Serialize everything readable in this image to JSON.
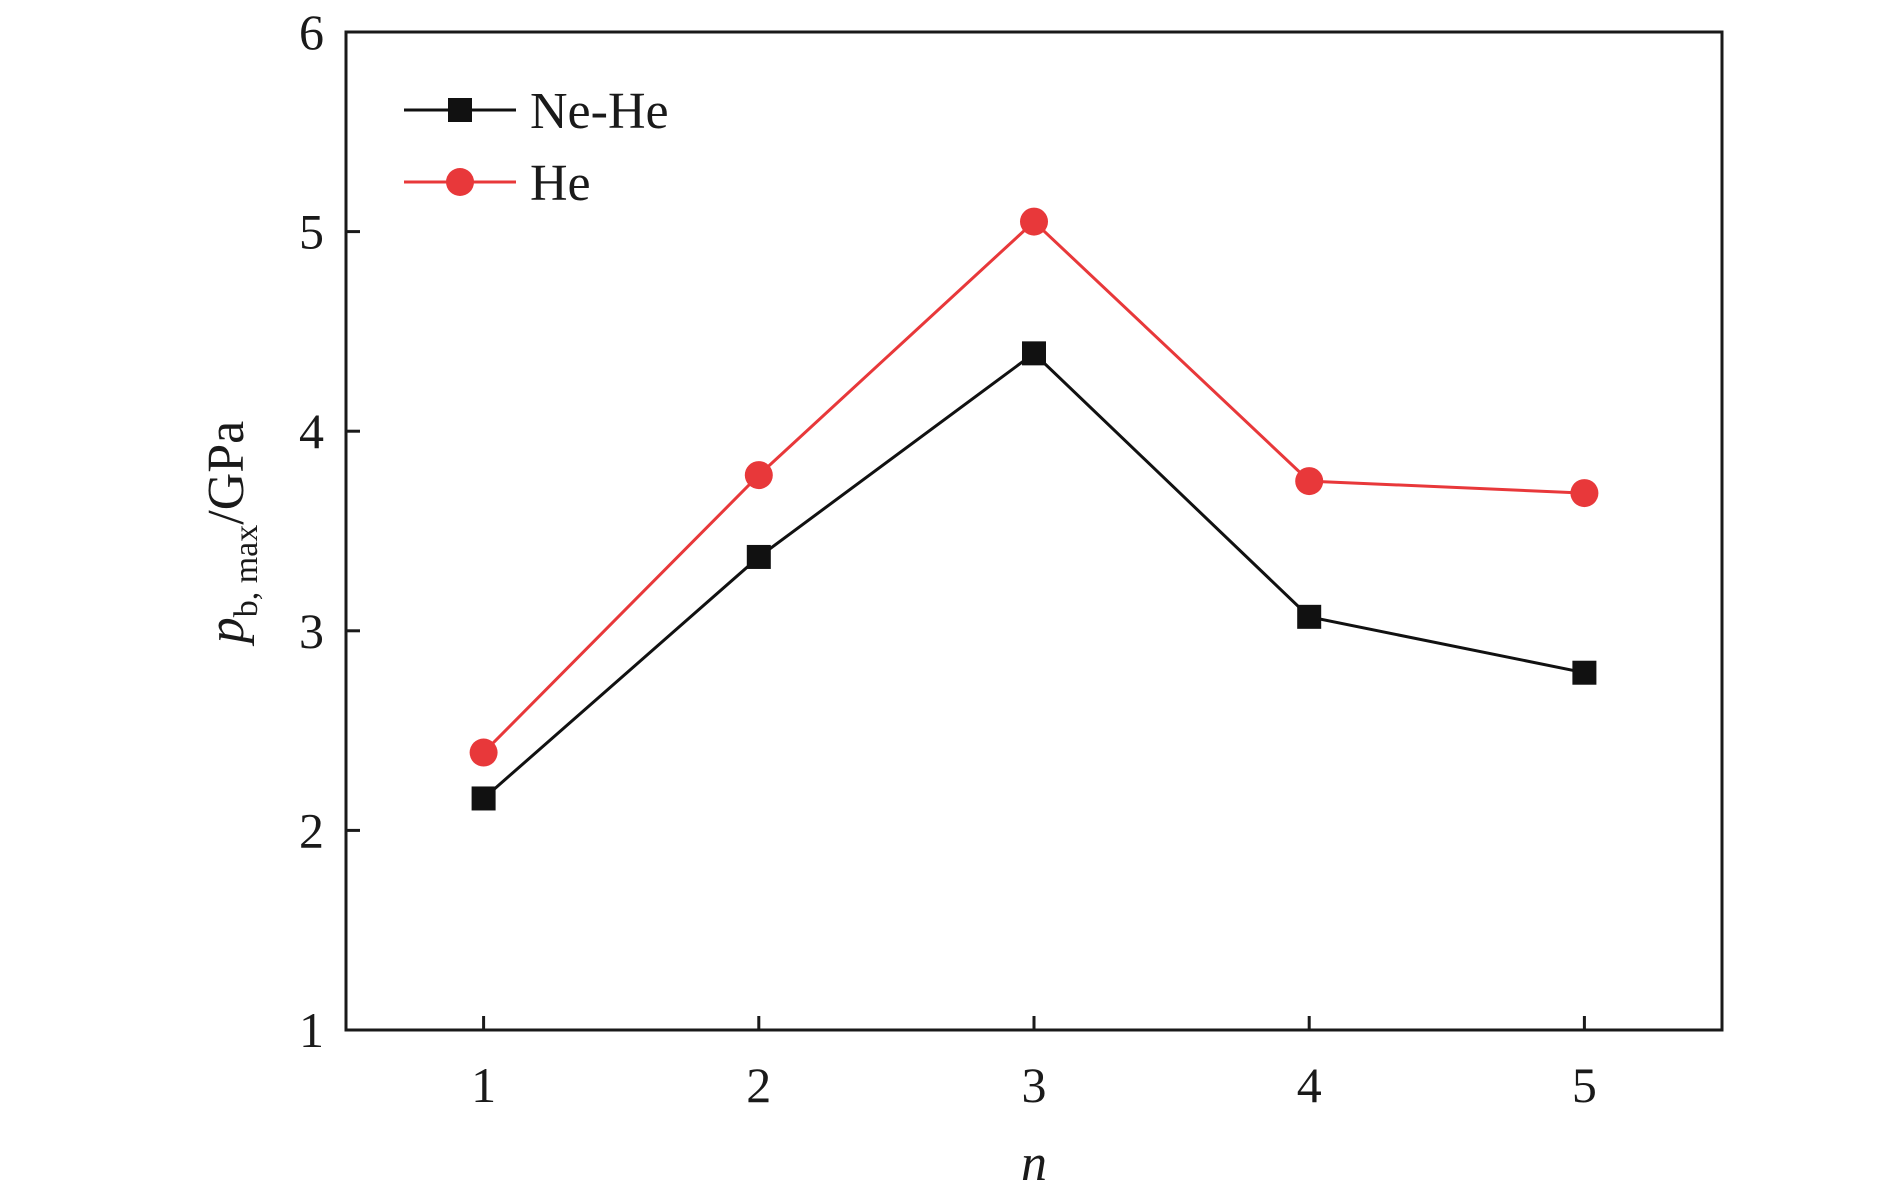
{
  "chart_data": {
    "type": "line",
    "x": [
      1,
      2,
      3,
      4,
      5
    ],
    "xticks": [
      "1",
      "2",
      "3",
      "4",
      "5"
    ],
    "yticks": [
      "1",
      "2",
      "3",
      "4",
      "5",
      "6"
    ],
    "xlim": [
      0.5,
      5.5
    ],
    "ylim": [
      1,
      6
    ],
    "xlabel": "n",
    "ylabel": {
      "main": "p",
      "subscript": "b, max",
      "suffix": "/GPa"
    },
    "grid": false,
    "legend_position": "top-left",
    "series": [
      {
        "name": "Ne-He",
        "values": [
          2.16,
          3.37,
          4.39,
          3.07,
          2.79
        ],
        "color": "#111111",
        "marker": "square"
      },
      {
        "name": "He",
        "values": [
          2.39,
          3.78,
          5.05,
          3.75,
          3.69
        ],
        "color": "#e8383a",
        "marker": "circle"
      }
    ]
  }
}
